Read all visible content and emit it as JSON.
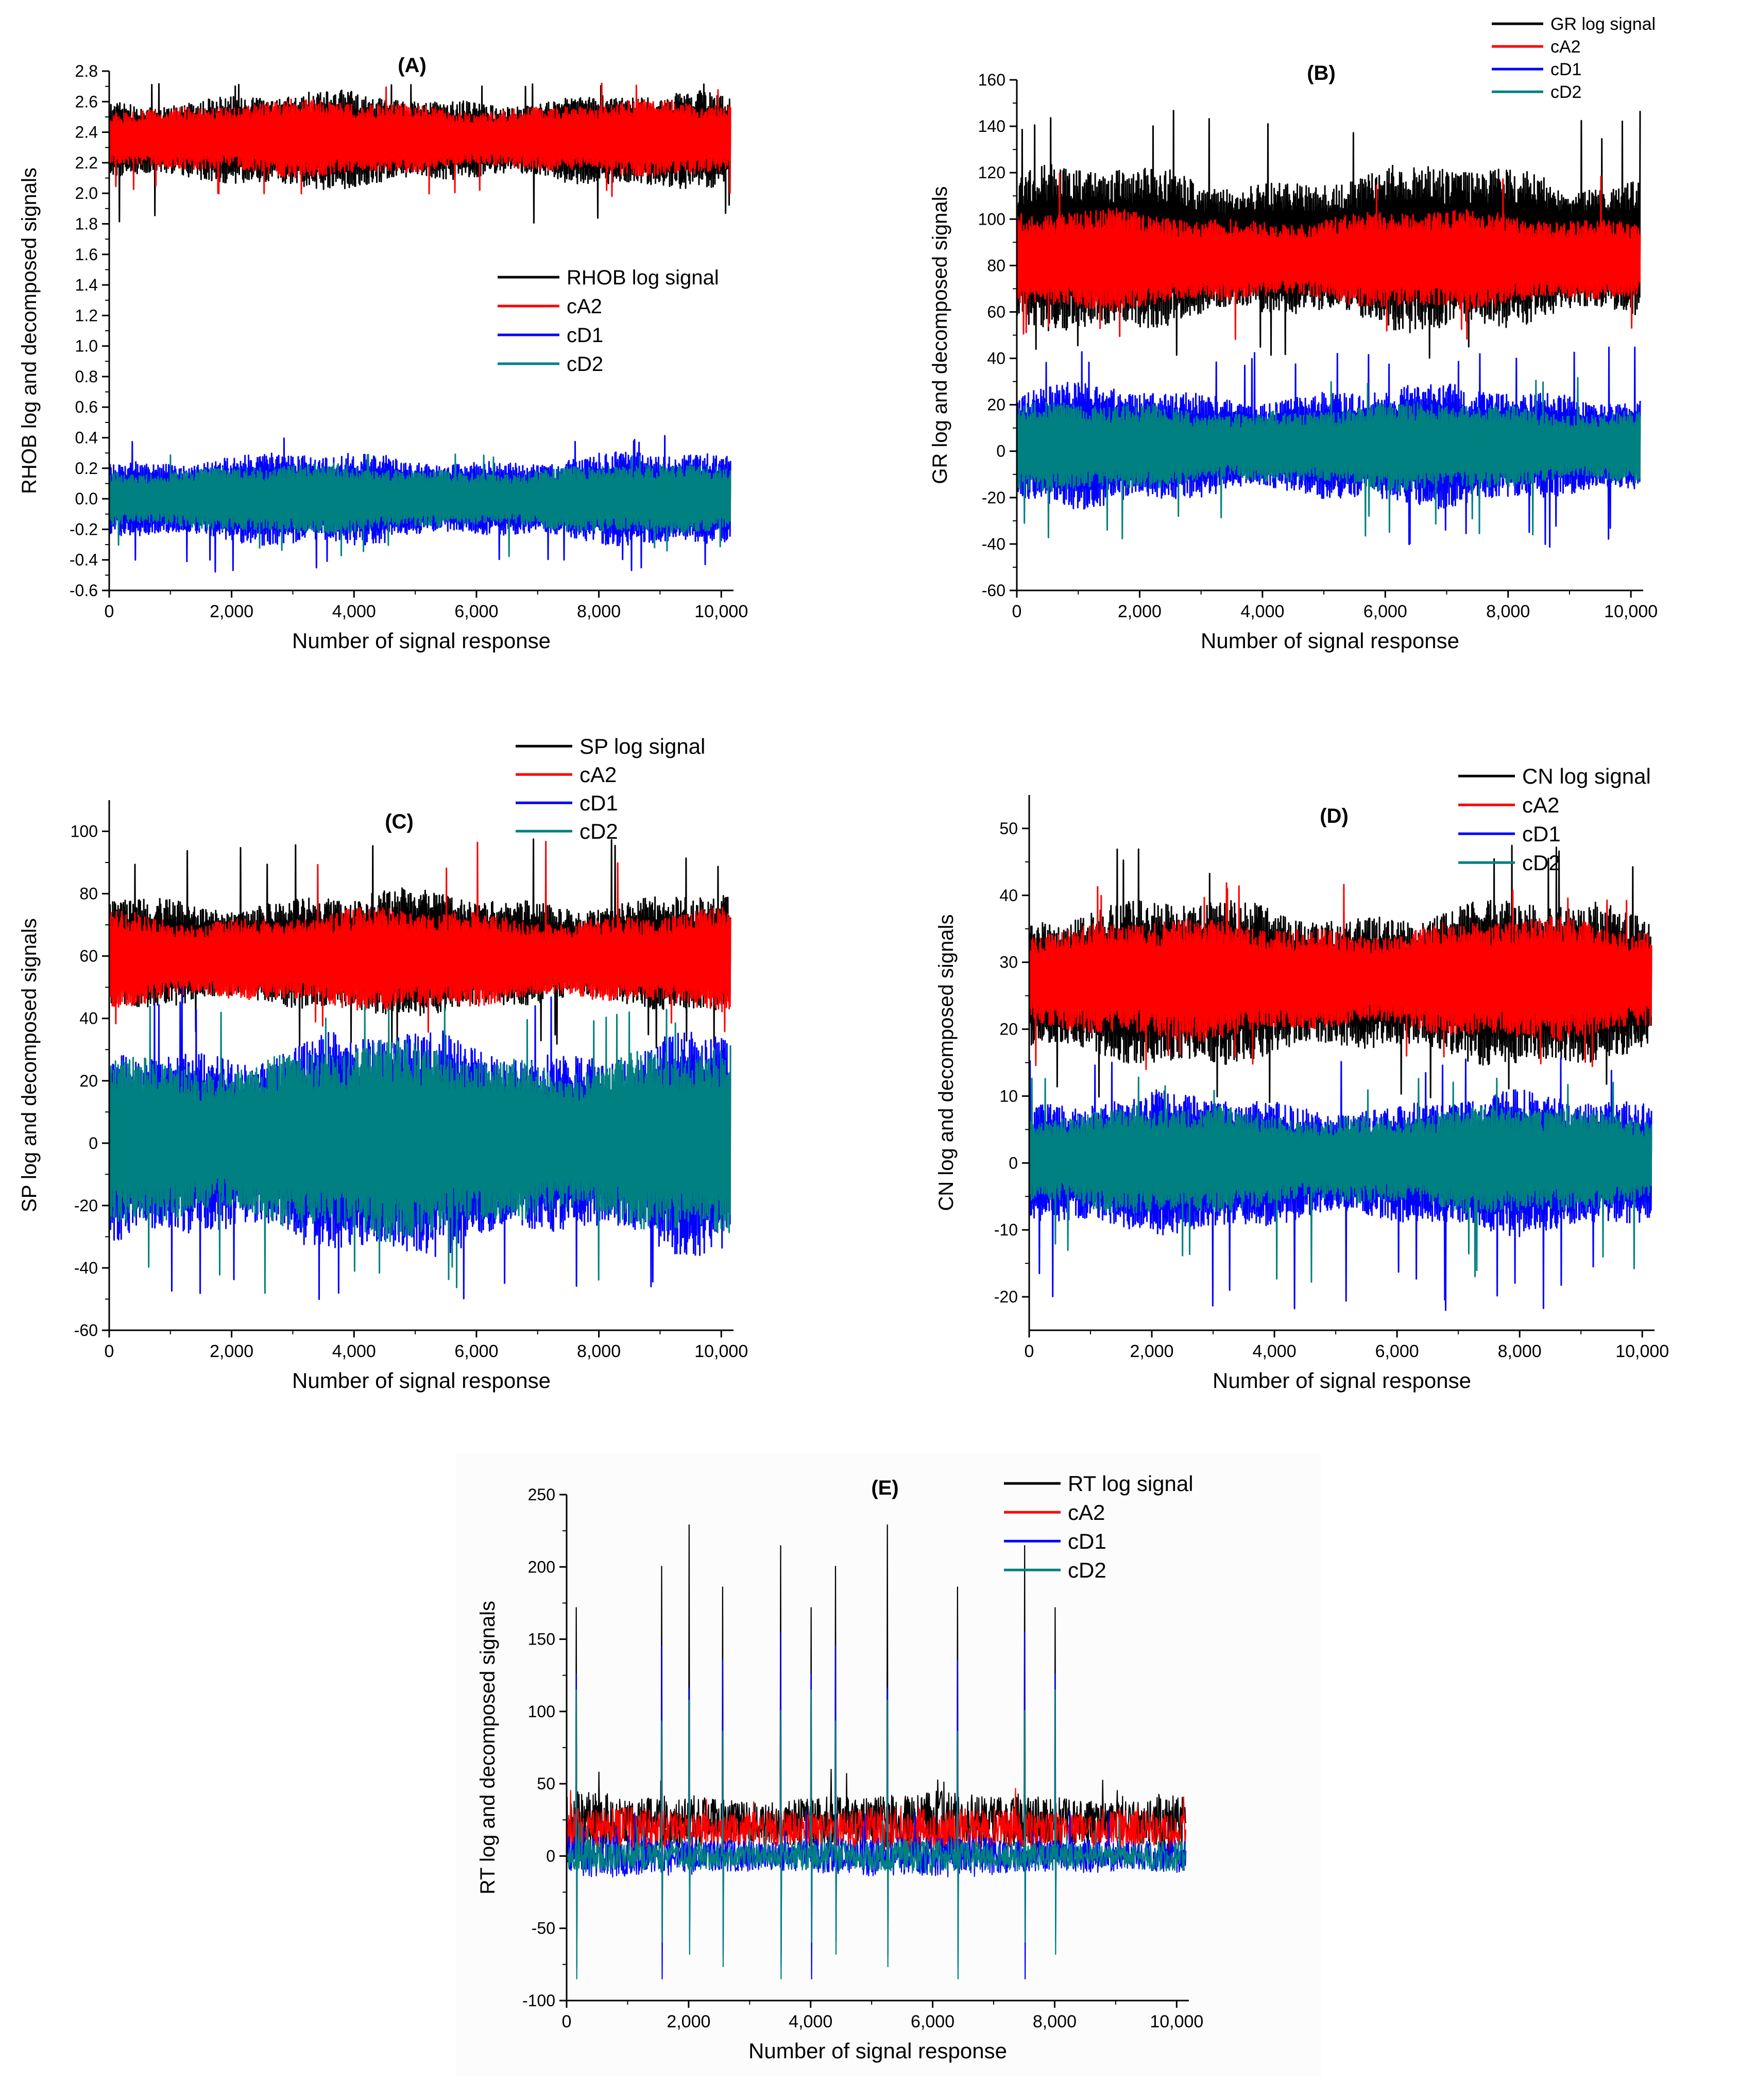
{
  "figure": {
    "colors": {
      "signal": "#000000",
      "cA2": "#ff0000",
      "cD1": "#0000ff",
      "cD2": "#008080"
    }
  },
  "chart_data": [
    {
      "type": "line",
      "panel": "(A)",
      "title": "(A)",
      "xlabel": "Number of signal response",
      "ylabel": "RHOB log and decomposed signals",
      "xlim": [
        0,
        10200
      ],
      "ylim": [
        -0.6,
        2.8
      ],
      "xticks": [
        0,
        2000,
        4000,
        6000,
        8000,
        10000
      ],
      "xtick_labels": [
        "0",
        "2,000",
        "4,000",
        "6,000",
        "8,000",
        "10,000"
      ],
      "yticks": [
        -0.6,
        -0.4,
        -0.2,
        0.0,
        0.2,
        0.4,
        0.6,
        0.8,
        1.0,
        1.2,
        1.4,
        1.6,
        1.8,
        2.0,
        2.2,
        2.4,
        2.6,
        2.8
      ],
      "ytick_labels": [
        "-0.6",
        "-0.4",
        "-0.2",
        "0.0",
        "0.2",
        "0.4",
        "0.6",
        "0.8",
        "1.0",
        "1.2",
        "1.4",
        "1.6",
        "1.8",
        "2.0",
        "2.2",
        "2.4",
        "2.6",
        "2.8"
      ],
      "n_points": 10150,
      "legend_position": "center-right",
      "series": [
        {
          "name": "RHOB log signal",
          "color": "#000000",
          "center": 2.38,
          "low": 2.02,
          "high": 2.68,
          "spike_max": 2.72,
          "spike_min": 1.8
        },
        {
          "name": "cA2",
          "color": "#ff0000",
          "center": 2.38,
          "low": 2.1,
          "high": 2.62,
          "spike_max": 2.73,
          "spike_min": 1.98
        },
        {
          "name": "cD1",
          "color": "#0000ff",
          "center": 0.0,
          "low": -0.32,
          "high": 0.32,
          "spike_max": 0.42,
          "spike_min": -0.48
        },
        {
          "name": "cD2",
          "color": "#008080",
          "center": 0.0,
          "low": -0.24,
          "high": 0.24,
          "spike_max": 0.3,
          "spike_min": -0.38
        }
      ]
    },
    {
      "type": "line",
      "panel": "(B)",
      "title": "(B)",
      "xlabel": "Number of signal response",
      "ylabel": "GR log and decomposed signals",
      "xlim": [
        0,
        10200
      ],
      "ylim": [
        -60,
        160
      ],
      "xticks": [
        0,
        2000,
        4000,
        6000,
        8000,
        10000
      ],
      "xtick_labels": [
        "0",
        "2,000",
        "4,000",
        "6,000",
        "8,000",
        "10,000"
      ],
      "yticks": [
        -60,
        -40,
        -20,
        0,
        20,
        40,
        60,
        80,
        100,
        120,
        140,
        160
      ],
      "ytick_labels": [
        "-60",
        "-40",
        "-20",
        "0",
        "20",
        "40",
        "60",
        "80",
        "100",
        "120",
        "140",
        "160"
      ],
      "n_points": 10150,
      "legend_position": "top-right-outside",
      "series": [
        {
          "name": "GR log signal",
          "color": "#000000",
          "center": 85,
          "low": 50,
          "high": 125,
          "spike_max": 147,
          "spike_min": 40
        },
        {
          "name": "cA2",
          "color": "#ff0000",
          "center": 82,
          "low": 60,
          "high": 105,
          "spike_max": 128,
          "spike_min": 48
        },
        {
          "name": "cD1",
          "color": "#0000ff",
          "center": 0,
          "low": -25,
          "high": 30,
          "spike_max": 46,
          "spike_min": -42
        },
        {
          "name": "cD2",
          "color": "#008080",
          "center": 0,
          "low": -18,
          "high": 22,
          "spike_max": 34,
          "spike_min": -38
        }
      ]
    },
    {
      "type": "line",
      "panel": "(C)",
      "title": "(C)",
      "xlabel": "Number of signal response",
      "ylabel": "SP log and decomposed signals",
      "xlim": [
        0,
        10200
      ],
      "ylim": [
        -60,
        110
      ],
      "xticks": [
        0,
        2000,
        4000,
        6000,
        8000,
        10000
      ],
      "xtick_labels": [
        "0",
        "2,000",
        "4,000",
        "6,000",
        "8,000",
        "10,000"
      ],
      "yticks": [
        -60,
        -40,
        -20,
        0,
        20,
        40,
        60,
        80,
        100
      ],
      "ytick_labels": [
        "-60",
        "-40",
        "-20",
        "0",
        "20",
        "40",
        "60",
        "80",
        "100"
      ],
      "n_points": 10150,
      "legend_position": "top-right-outside",
      "series": [
        {
          "name": "SP log signal",
          "color": "#000000",
          "center": 60,
          "low": 40,
          "high": 82,
          "spike_max": 98,
          "spike_min": 30
        },
        {
          "name": "cA2",
          "color": "#ff0000",
          "center": 58,
          "low": 42,
          "high": 76,
          "spike_max": 100,
          "spike_min": 35
        },
        {
          "name": "cD1",
          "color": "#0000ff",
          "center": 0,
          "low": -38,
          "high": 38,
          "spike_max": 50,
          "spike_min": -51
        },
        {
          "name": "cD2",
          "color": "#008080",
          "center": 0,
          "low": -32,
          "high": 34,
          "spike_max": 45,
          "spike_min": -49
        }
      ]
    },
    {
      "type": "line",
      "panel": "(D)",
      "title": "(D)",
      "xlabel": "Number of signal response",
      "ylabel": "CN log and decomposed signals",
      "xlim": [
        0,
        10200
      ],
      "ylim": [
        -25,
        55
      ],
      "xticks": [
        0,
        2000,
        4000,
        6000,
        8000,
        10000
      ],
      "xtick_labels": [
        "0",
        "2,000",
        "4,000",
        "6,000",
        "8,000",
        "10,000"
      ],
      "yticks": [
        -20,
        -10,
        0,
        10,
        20,
        30,
        40,
        50
      ],
      "ytick_labels": [
        "-20",
        "-10",
        "0",
        "10",
        "20",
        "30",
        "40",
        "50"
      ],
      "n_points": 10150,
      "legend_position": "top-right-outside",
      "series": [
        {
          "name": "CN log signal",
          "color": "#000000",
          "center": 28,
          "low": 14,
          "high": 40,
          "spike_max": 48,
          "spike_min": 9
        },
        {
          "name": "cA2",
          "color": "#ff0000",
          "center": 28,
          "low": 18,
          "high": 37,
          "spike_max": 42,
          "spike_min": 14
        },
        {
          "name": "cD1",
          "color": "#0000ff",
          "center": 0,
          "low": -11,
          "high": 11,
          "spike_max": 17,
          "spike_min": -22
        },
        {
          "name": "cD2",
          "color": "#008080",
          "center": 0,
          "low": -8,
          "high": 9,
          "spike_max": 13,
          "spike_min": -18
        }
      ]
    },
    {
      "type": "line",
      "panel": "(E)",
      "title": "(E)",
      "xlabel": "Number of signal response",
      "ylabel": "RT log and decomposed signals",
      "xlim": [
        0,
        10200
      ],
      "ylim": [
        -100,
        250
      ],
      "xticks": [
        0,
        2000,
        4000,
        6000,
        8000,
        10000
      ],
      "xtick_labels": [
        "0",
        "2,000",
        "4,000",
        "6,000",
        "8,000",
        "10,000"
      ],
      "yticks": [
        -100,
        -50,
        0,
        50,
        100,
        150,
        200,
        250
      ],
      "ytick_labels": [
        "-100",
        "-50",
        "0",
        "50",
        "100",
        "150",
        "200",
        "250"
      ],
      "n_points": 10150,
      "legend_position": "top-right",
      "spike_positions": [
        150,
        1550,
        2000,
        2550,
        3500,
        4000,
        4400,
        5250,
        6400,
        7500,
        8000
      ],
      "series": [
        {
          "name": "RT log signal",
          "color": "#000000",
          "center": 12,
          "low": 2,
          "high": 45,
          "spike_max": 229,
          "spike_min": -5
        },
        {
          "name": "cA2",
          "color": "#ff0000",
          "center": 10,
          "low": 2,
          "high": 35,
          "spike_max": 100,
          "spike_min": -5
        },
        {
          "name": "cD1",
          "color": "#0000ff",
          "center": 0,
          "low": -15,
          "high": 15,
          "spike_max": 155,
          "spike_min": -85
        },
        {
          "name": "cD2",
          "color": "#008080",
          "center": 0,
          "low": -12,
          "high": 12,
          "spike_max": 115,
          "spike_min": -85
        }
      ]
    }
  ]
}
